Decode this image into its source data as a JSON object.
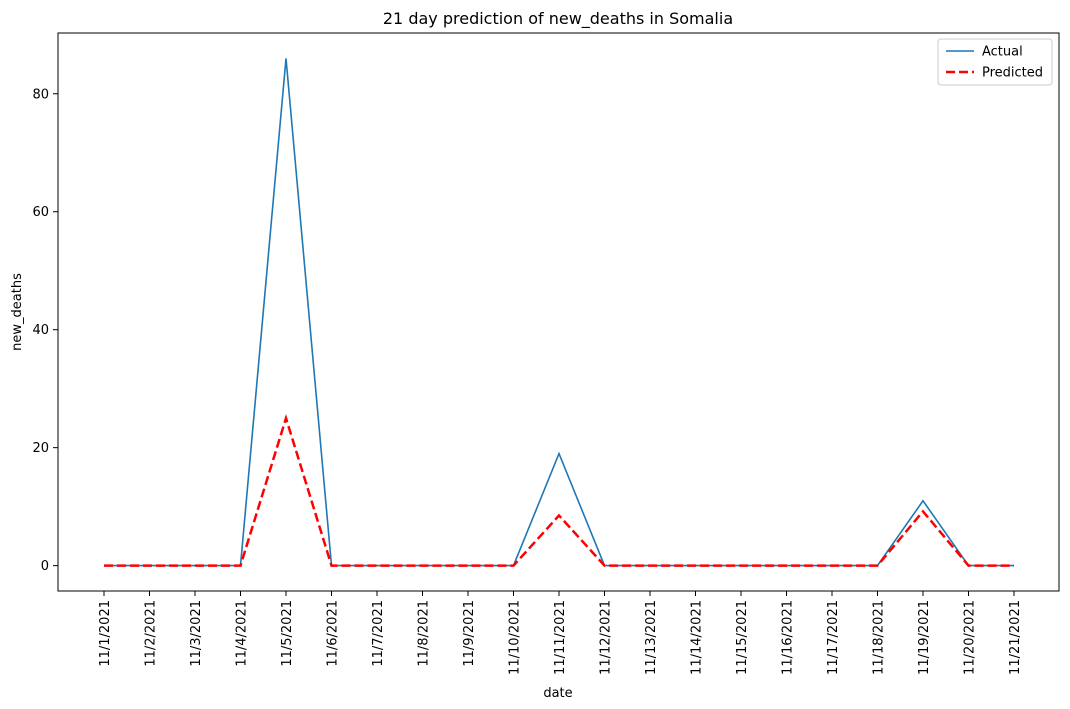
{
  "chart_data": {
    "type": "line",
    "title": "21 day prediction of new_deaths in Somalia",
    "xlabel": "date",
    "ylabel": "new_deaths",
    "x": [
      "11/1/2021",
      "11/2/2021",
      "11/3/2021",
      "11/4/2021",
      "11/5/2021",
      "11/6/2021",
      "11/7/2021",
      "11/8/2021",
      "11/9/2021",
      "11/10/2021",
      "11/11/2021",
      "11/12/2021",
      "11/13/2021",
      "11/14/2021",
      "11/15/2021",
      "11/16/2021",
      "11/17/2021",
      "11/18/2021",
      "11/19/2021",
      "11/20/2021",
      "11/21/2021"
    ],
    "ylim": [
      -4.3,
      90.3
    ],
    "yticks": [
      0,
      20,
      40,
      60,
      80
    ],
    "grid": false,
    "legend_position": "top-right",
    "series": [
      {
        "name": "Actual",
        "color": "#1f77b4",
        "style": "solid",
        "values": [
          0,
          0,
          0,
          0,
          86,
          0,
          0,
          0,
          0,
          0,
          19,
          0,
          0,
          0,
          0,
          0,
          0,
          0,
          11,
          0,
          0
        ]
      },
      {
        "name": "Predicted",
        "color": "#ff0000",
        "style": "dashed",
        "values": [
          0,
          0,
          0,
          0,
          25,
          0,
          0,
          0,
          0,
          0,
          8.5,
          0,
          0,
          0,
          0,
          0,
          0,
          0,
          9.2,
          0,
          0
        ]
      }
    ]
  }
}
